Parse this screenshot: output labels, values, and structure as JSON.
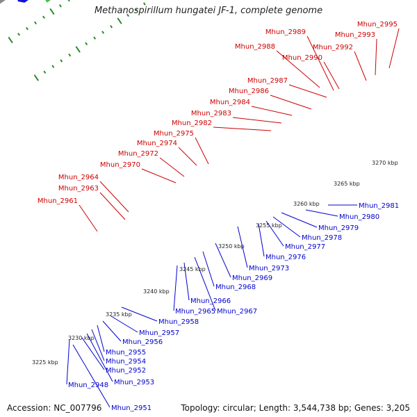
{
  "header": {
    "title": "Methanospirillum hungatei JF-1, complete genome"
  },
  "footer": {
    "accession": "Accession: NC_007796",
    "summary": "Topology: circular; Length: 3,544,738 bp; Genes: 3,205"
  },
  "colors": {
    "forward_label": "#cc0000",
    "reverse_label": "#0000cc",
    "backbone": "#8a8a8a",
    "tick": "#2a8a2a",
    "forward_gene": "#ee0000",
    "reverse_gene": "#1010dd",
    "grey_gene": "#8c8c8c",
    "light_grey_gene": "#d0d0d0",
    "green_gene": "#33cc33",
    "cyan_gene": "#22ddee",
    "navy_gene": "#3a3a8c",
    "olive_gene": "#bbbb77",
    "pink_gene": "#ee8899",
    "orange_gene": "#ff9922",
    "steel_gene": "#5588cc"
  },
  "ruler": [
    {
      "label": "3225 kbp",
      "kbp": 3225
    },
    {
      "label": "3230 kbp",
      "kbp": 3230
    },
    {
      "label": "3235 kbp",
      "kbp": 3235
    },
    {
      "label": "3240 kbp",
      "kbp": 3240
    },
    {
      "label": "3245 kbp",
      "kbp": 3245
    },
    {
      "label": "3250 kbp",
      "kbp": 3250
    },
    {
      "label": "3255 kbp",
      "kbp": 3255
    },
    {
      "label": "3260 kbp",
      "kbp": 3260
    },
    {
      "label": "3265 kbp",
      "kbp": 3265
    },
    {
      "label": "3270 kbp",
      "kbp": 3270
    }
  ],
  "forward_labels": [
    "Mhun_2961",
    "Mhun_2963",
    "Mhun_2964",
    "Mhun_2970",
    "Mhun_2972",
    "Mhun_2974",
    "Mhun_2975",
    "Mhun_2982",
    "Mhun_2983",
    "Mhun_2984",
    "Mhun_2986",
    "Mhun_2987",
    "Mhun_2988",
    "Mhun_2989",
    "Mhun_2990",
    "Mhun_2992",
    "Mhun_2993",
    "Mhun_2995"
  ],
  "reverse_labels": [
    "Mhun_2948",
    "Mhun_2951",
    "Mhun_2952",
    "Mhun_2953",
    "Mhun_2954",
    "Mhun_2955",
    "Mhun_2956",
    "Mhun_2957",
    "Mhun_2958",
    "Mhun_2965",
    "Mhun_2966",
    "Mhun_2967",
    "Mhun_2968",
    "Mhun_2969",
    "Mhun_2973",
    "Mhun_2976",
    "Mhun_2977",
    "Mhun_2978",
    "Mhun_2979",
    "Mhun_2980",
    "Mhun_2981"
  ]
}
